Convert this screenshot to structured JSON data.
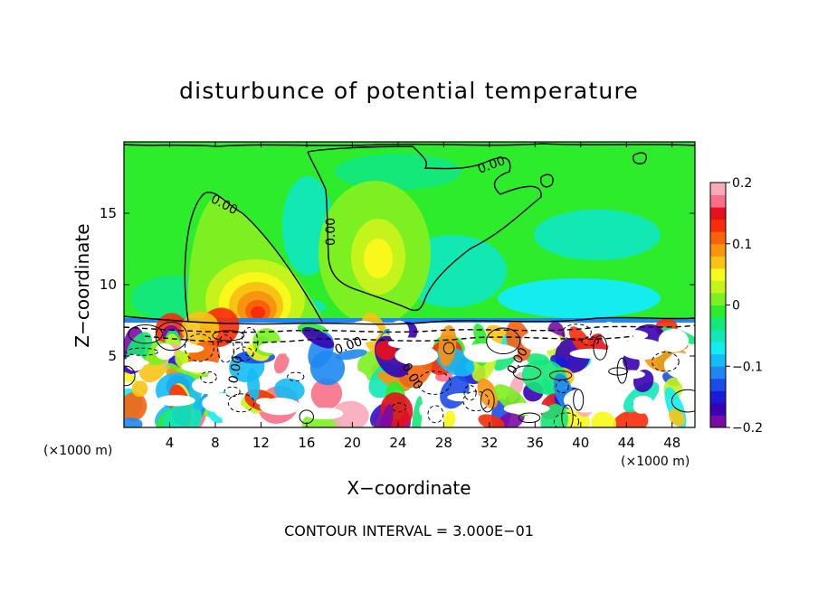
{
  "chart_data": {
    "type": "heatmap",
    "title": "disturbunce of potential temperature",
    "xlabel": "X−coordinate",
    "ylabel": "Z−coordinate",
    "x_unit_left": "(×1000 m)",
    "x_unit_right": "(×1000 m)",
    "xlim": [
      0,
      50
    ],
    "ylim": [
      0,
      20
    ],
    "xticks": [
      4,
      8,
      12,
      16,
      20,
      24,
      28,
      32,
      36,
      40,
      44,
      48
    ],
    "yticks": [
      5,
      10,
      15
    ],
    "colorbar": {
      "range": [
        -0.2,
        0.2
      ],
      "labels": [
        "0.2",
        "0.1",
        "0",
        "−0.1",
        "−0.2"
      ],
      "label_values": [
        0.2,
        0.1,
        0,
        -0.1,
        -0.2
      ],
      "colors": [
        "#7a0aa8",
        "#3a00b4",
        "#1a1ad8",
        "#1c4ce8",
        "#1e88f0",
        "#14bcf4",
        "#14ecf0",
        "#12e8b4",
        "#14e878",
        "#2cec2c",
        "#7cf020",
        "#c4f41c",
        "#f8f81a",
        "#f8c414",
        "#f89410",
        "#f8620c",
        "#f82c0a",
        "#e8101c",
        "#f87088",
        "#f8aab8"
      ]
    },
    "contour_labels": [
      "0.00",
      "0.00",
      "0.00",
      "0.00",
      "0.00",
      "0.00",
      "0.00"
    ],
    "contour_interval": "CONTOUR INTERVAL =  3.000E−01"
  }
}
